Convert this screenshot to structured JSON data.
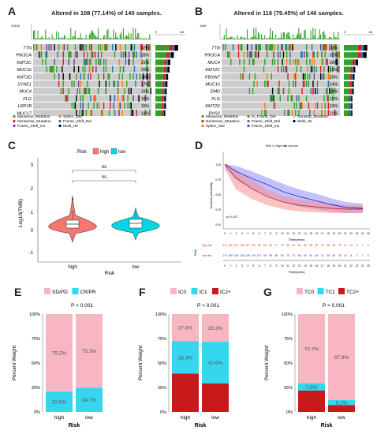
{
  "panelA": {
    "label": "A",
    "title": "Altered in 108 (77.14%) of 140 samples.",
    "tmb_max": "11316",
    "axis_max": "68",
    "genes": [
      "TTN",
      "PIK3CA",
      "KMT2C",
      "MUC16",
      "KMT2D",
      "SYNE1",
      "MUC4",
      "FLG",
      "LRP1B",
      "MUC17"
    ],
    "percents": [
      "32%",
      "26%",
      "21%",
      "20%",
      "18%",
      "17%",
      "16%",
      "15%",
      "15%",
      "14%"
    ],
    "legend": [
      "Missense_Mutation",
      "Nonsense_Mutation",
      "Frame_Shift_Ins",
      "Splice_Site",
      "Frame_Shift_Del",
      "Multi_Hit"
    ]
  },
  "panelB": {
    "label": "B",
    "title": "Altered in 116 (79.45%) of 146 samples.",
    "tmb_max": "1165",
    "axis_max": "48",
    "genes": [
      "TTN",
      "PIK3CA",
      "MUC4",
      "KMT2C",
      "FBXW7",
      "MUC16",
      "DMD",
      "FLG",
      "KMT2D",
      "RYR2"
    ],
    "percents": [
      "33%",
      "32%",
      "20%",
      "16%",
      "15%",
      "14%",
      "14%",
      "12%",
      "12%",
      "12%"
    ],
    "legend": [
      "Missense_Mutation",
      "Nonsense_Mutation",
      "Splice_Site",
      "In_Frame_Del",
      "Frame_Shift_Del",
      "Frame_Shift_Ins",
      "Nonstop_Mutation",
      "Multi_Hit"
    ]
  },
  "colors": {
    "missense": "#33a02c",
    "nonsense": "#e31a1c",
    "frameshift_ins": "#6a3d9a",
    "splice": "#ff7f00",
    "frameshift_del": "#1f78b4",
    "multi": "#000000",
    "inframe": "#b15928",
    "nonstop": "#a6cee3",
    "bg": "#cccccc",
    "high": "#f8766d",
    "low": "#00d6e5",
    "pink": "#f7b6c2",
    "cyan": "#35d6ee",
    "red": "#c8191b"
  },
  "panelC": {
    "label": "C",
    "legend_title": "Risk",
    "legend_items": [
      "high",
      "low"
    ],
    "ylabel": "Log10(TMB)",
    "yticks": [
      "3",
      "2",
      "1",
      "0",
      "-1"
    ],
    "xticks": [
      "high",
      "low"
    ],
    "xlabel": "Risk",
    "sig": "ns"
  },
  "panelD": {
    "label": "D",
    "ylabel": "Survival probability",
    "xlabel": "Time(years)",
    "pvalue": "p=0.107",
    "legend_items": [
      "Risk",
      "High risk",
      "Low risk"
    ],
    "yticks": [
      "1.00",
      "0.75",
      "0.50",
      "0.25",
      "0.00"
    ],
    "risk_table_label": "Risk",
    "risk_rows": [
      "High risk",
      "Low risk"
    ],
    "risk_high": [
      "174",
      "160",
      "142",
      "130",
      "107",
      "104",
      "96",
      "90",
      "85",
      "77",
      "72",
      "68",
      "64",
      "60",
      "60",
      "56",
      "50",
      "47",
      "38",
      "36",
      "33",
      "22",
      "14",
      "6",
      "0",
      "0"
    ],
    "risk_low": [
      "174",
      "168",
      "158",
      "136",
      "128",
      "119",
      "107",
      "99",
      "88",
      "86",
      "80",
      "78",
      "71",
      "68",
      "59",
      "54",
      "49",
      "47",
      "38",
      "36",
      "28",
      "14",
      "6",
      "2",
      "0",
      "0"
    ]
  },
  "chart_data": [
    {
      "type": "bar",
      "panel": "E",
      "legend": [
        "SD/PD",
        "CR/PR"
      ],
      "title": "P < 0.001",
      "categories": [
        "high",
        "low"
      ],
      "series": [
        {
          "name": "SD/PD",
          "values": [
            79.2,
            75.3
          ]
        },
        {
          "name": "CR/PR",
          "values": [
            20.8,
            24.7
          ]
        }
      ],
      "value_labels": [
        [
          "79.2%",
          "75.3%"
        ],
        [
          "20.8%",
          "24.7%"
        ]
      ],
      "xlabel": "Risk",
      "ylabel": "Percent Weight",
      "yticks": [
        "100%",
        "75%",
        "50%",
        "25%",
        "0%"
      ],
      "ylim": [
        0,
        100
      ]
    },
    {
      "type": "bar",
      "panel": "F",
      "legend": [
        "IC0",
        "IC1",
        "IC2+"
      ],
      "title": "P < 0.001",
      "categories": [
        "high",
        "low"
      ],
      "series": [
        {
          "name": "IC0",
          "values": [
            27.6,
            28.3
          ]
        },
        {
          "name": "IC1",
          "values": [
            33.3,
            42.6
          ]
        },
        {
          "name": "IC2+",
          "values": [
            39.1,
            29.1
          ]
        }
      ],
      "value_labels": [
        [
          "27.6%",
          "28.3%"
        ],
        [
          "33.3%",
          "42.6%"
        ],
        [
          "",
          ""
        ]
      ],
      "xlabel": "Risk",
      "ylabel": "Percent Weight",
      "yticks": [
        "100%",
        "75%",
        "50%",
        "25%",
        "0%"
      ],
      "ylim": [
        0,
        100
      ]
    },
    {
      "type": "bar",
      "panel": "G",
      "legend": [
        "TC0",
        "TC1",
        "TC2+"
      ],
      "title": "P < 0.001",
      "categories": [
        "high",
        "low"
      ],
      "series": [
        {
          "name": "TC0",
          "values": [
            70.7,
            87.9
          ]
        },
        {
          "name": "TC1",
          "values": [
            7.5,
            5.2
          ]
        },
        {
          "name": "TC2+",
          "values": [
            21.8,
            6.9
          ]
        }
      ],
      "value_labels": [
        [
          "70.7%",
          "87.9%"
        ],
        [
          "7.5%",
          "5.2%"
        ],
        [
          "",
          ""
        ]
      ],
      "xlabel": "Risk",
      "ylabel": "Percent Weight",
      "yticks": [
        "100%",
        "75%",
        "50%",
        "25%",
        "0%"
      ],
      "ylim": [
        0,
        100
      ]
    }
  ]
}
